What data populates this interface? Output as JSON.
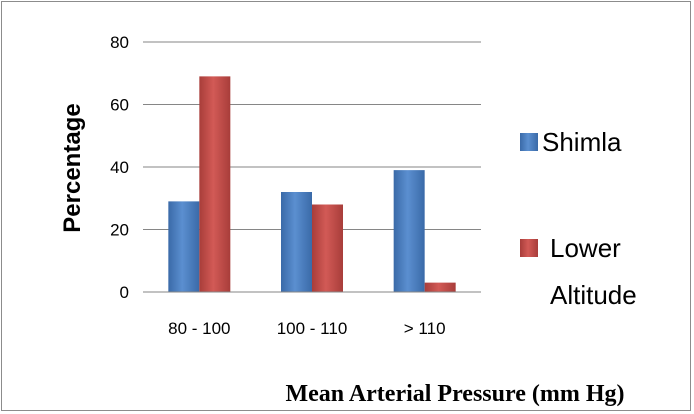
{
  "chart_data": {
    "type": "bar",
    "categories": [
      "80 - 100",
      "100 - 110",
      "> 110"
    ],
    "series": [
      {
        "name": "Shimla",
        "values": [
          29,
          32,
          39
        ],
        "color": "#4a7ebb"
      },
      {
        "name": "Lower Altitude",
        "values": [
          69,
          28,
          3
        ],
        "color": "#be4b48"
      }
    ],
    "ylim": [
      0,
      80
    ],
    "yticks": [
      0,
      20,
      40,
      60,
      80
    ],
    "ylabel": "Percentage",
    "xlabel": "Mean Arterial Pressure (mm Hg)",
    "grid": true,
    "legend_position": "right",
    "legend_labels": {
      "shimla": "Shimla",
      "lower_altitude_line1": "Lower",
      "lower_altitude_line2": "Altitude"
    }
  }
}
